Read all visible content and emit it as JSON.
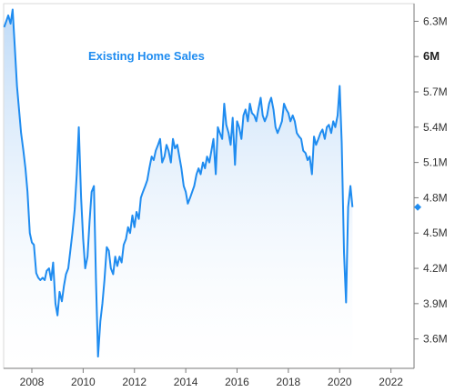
{
  "chart_data": {
    "type": "area",
    "title": "",
    "xlabel": "",
    "ylabel": "",
    "series_label": "Existing Home Sales",
    "xlim": [
      2006.9,
      2022.9
    ],
    "ylim": [
      3.35,
      6.45
    ],
    "x_ticks": [
      {
        "value": 2008,
        "label": "2008"
      },
      {
        "value": 2010,
        "label": "2010"
      },
      {
        "value": 2012,
        "label": "2012"
      },
      {
        "value": 2014,
        "label": "2014"
      },
      {
        "value": 2016,
        "label": "2016"
      },
      {
        "value": 2018,
        "label": "2018"
      },
      {
        "value": 2020,
        "label": "2020"
      },
      {
        "value": 2022,
        "label": "2022"
      }
    ],
    "y_ticks": [
      {
        "value": 3.6,
        "label": "3.6M",
        "bold": false
      },
      {
        "value": 3.9,
        "label": "3.9M",
        "bold": false
      },
      {
        "value": 4.2,
        "label": "4.2M",
        "bold": false
      },
      {
        "value": 4.5,
        "label": "4.5M",
        "bold": false
      },
      {
        "value": 4.8,
        "label": "4.8M",
        "bold": false
      },
      {
        "value": 5.1,
        "label": "5.1M",
        "bold": false
      },
      {
        "value": 5.4,
        "label": "5.4M",
        "bold": false
      },
      {
        "value": 5.7,
        "label": "5.7M",
        "bold": false
      },
      {
        "value": 6.0,
        "label": "6M",
        "bold": true
      },
      {
        "value": 6.3,
        "label": "6.3M",
        "bold": false
      }
    ],
    "last_value": 4.72,
    "grid": false,
    "colors": {
      "line": "#1f8cf0",
      "fill_top": "#bcd9f7",
      "fill_bottom": "#ffffff",
      "axis": "#7a7a7a",
      "title": "#1f8cf0"
    },
    "x": [
      2006.92,
      2007.0,
      2007.08,
      2007.17,
      2007.25,
      2007.33,
      2007.42,
      2007.5,
      2007.58,
      2007.67,
      2007.75,
      2007.83,
      2007.92,
      2008.0,
      2008.08,
      2008.17,
      2008.25,
      2008.33,
      2008.42,
      2008.5,
      2008.58,
      2008.67,
      2008.75,
      2008.83,
      2008.92,
      2009.0,
      2009.08,
      2009.17,
      2009.25,
      2009.33,
      2009.42,
      2009.5,
      2009.58,
      2009.67,
      2009.75,
      2009.83,
      2009.92,
      2010.0,
      2010.08,
      2010.17,
      2010.25,
      2010.33,
      2010.42,
      2010.5,
      2010.58,
      2010.67,
      2010.75,
      2010.83,
      2010.92,
      2011.0,
      2011.08,
      2011.17,
      2011.25,
      2011.33,
      2011.42,
      2011.5,
      2011.58,
      2011.67,
      2011.75,
      2011.83,
      2011.92,
      2012.0,
      2012.08,
      2012.17,
      2012.25,
      2012.33,
      2012.42,
      2012.5,
      2012.58,
      2012.67,
      2012.75,
      2012.83,
      2012.92,
      2013.0,
      2013.08,
      2013.17,
      2013.25,
      2013.33,
      2013.42,
      2013.5,
      2013.58,
      2013.67,
      2013.75,
      2013.83,
      2013.92,
      2014.0,
      2014.08,
      2014.17,
      2014.25,
      2014.33,
      2014.42,
      2014.5,
      2014.58,
      2014.67,
      2014.75,
      2014.83,
      2014.92,
      2015.0,
      2015.08,
      2015.17,
      2015.25,
      2015.33,
      2015.42,
      2015.5,
      2015.58,
      2015.67,
      2015.75,
      2015.83,
      2015.92,
      2016.0,
      2016.08,
      2016.17,
      2016.25,
      2016.33,
      2016.42,
      2016.5,
      2016.58,
      2016.67,
      2016.75,
      2016.83,
      2016.92,
      2017.0,
      2017.08,
      2017.17,
      2017.25,
      2017.33,
      2017.42,
      2017.5,
      2017.58,
      2017.67,
      2017.75,
      2017.83,
      2017.92,
      2018.0,
      2018.08,
      2018.17,
      2018.25,
      2018.33,
      2018.42,
      2018.5,
      2018.58,
      2018.67,
      2018.75,
      2018.83,
      2018.92,
      2019.0,
      2019.08,
      2019.17,
      2019.25,
      2019.33,
      2019.42,
      2019.5,
      2019.58,
      2019.67,
      2019.75,
      2019.83,
      2019.92,
      2020.0,
      2020.08,
      2020.17,
      2020.25,
      2020.33,
      2020.42,
      2020.5
    ],
    "values": [
      6.25,
      6.3,
      6.35,
      6.28,
      6.4,
      6.1,
      5.75,
      5.55,
      5.35,
      5.2,
      5.05,
      4.85,
      4.5,
      4.42,
      4.4,
      4.16,
      4.12,
      4.1,
      4.12,
      4.1,
      4.18,
      4.2,
      4.1,
      4.25,
      3.9,
      3.8,
      4.0,
      3.92,
      4.05,
      4.15,
      4.2,
      4.35,
      4.5,
      4.7,
      5.0,
      5.4,
      4.8,
      4.45,
      4.2,
      4.3,
      4.6,
      4.85,
      4.9,
      4.1,
      3.45,
      3.75,
      3.9,
      4.1,
      4.38,
      4.35,
      4.2,
      4.15,
      4.3,
      4.22,
      4.3,
      4.25,
      4.4,
      4.45,
      4.55,
      4.5,
      4.65,
      4.55,
      4.68,
      4.62,
      4.8,
      4.85,
      4.9,
      4.95,
      5.05,
      5.15,
      5.12,
      5.2,
      5.25,
      5.3,
      5.1,
      5.15,
      5.25,
      5.2,
      5.1,
      5.3,
      5.22,
      5.25,
      5.15,
      5.05,
      4.9,
      4.85,
      4.75,
      4.8,
      4.85,
      4.9,
      5.0,
      5.05,
      5.0,
      5.1,
      5.05,
      5.15,
      5.1,
      5.2,
      5.3,
      5.0,
      5.4,
      5.35,
      5.3,
      5.6,
      5.42,
      5.35,
      5.25,
      5.48,
      5.08,
      5.45,
      5.4,
      5.3,
      5.5,
      5.55,
      5.45,
      5.6,
      5.52,
      5.5,
      5.45,
      5.55,
      5.65,
      5.5,
      5.45,
      5.5,
      5.6,
      5.65,
      5.55,
      5.4,
      5.35,
      5.4,
      5.45,
      5.6,
      5.55,
      5.52,
      5.45,
      5.5,
      5.45,
      5.35,
      5.32,
      5.3,
      5.2,
      5.18,
      5.12,
      5.15,
      5.0,
      5.32,
      5.25,
      5.3,
      5.35,
      5.38,
      5.3,
      5.4,
      5.42,
      5.35,
      5.45,
      5.4,
      5.5,
      5.75,
      5.27,
      4.33,
      3.91,
      4.72,
      4.9,
      4.72
    ]
  },
  "series_label_text": "Existing Home Sales"
}
